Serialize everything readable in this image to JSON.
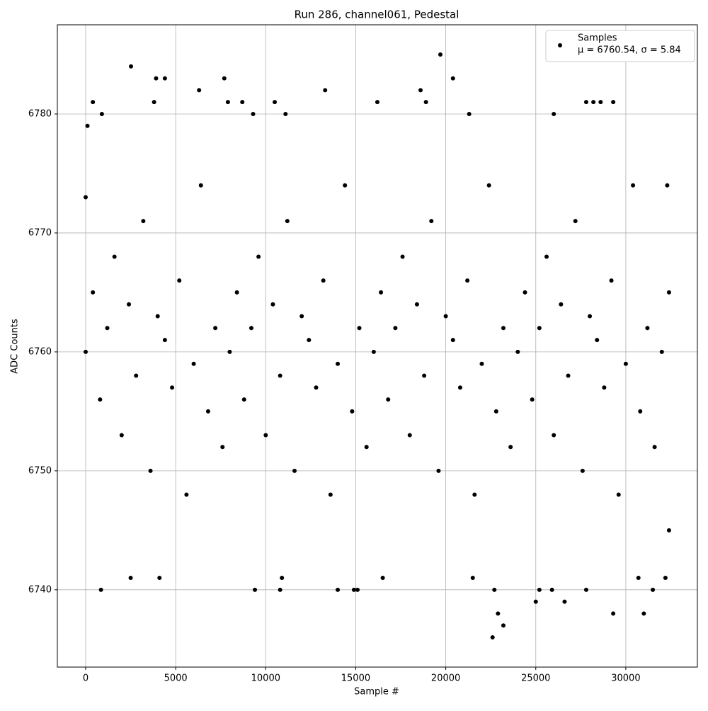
{
  "chart_data": {
    "type": "scatter",
    "title": "Run 286, channel061, Pedestal",
    "x_label": "Sample #",
    "y_label": "ADC Counts",
    "legend_note": "μ = 6760.54, σ = 5.84",
    "legend_position": "upper right",
    "grid": true,
    "xlim": [
      -1573,
      33975
    ],
    "ylim": [
      6733.5,
      6787.5
    ],
    "xticks": [
      0,
      5000,
      10000,
      15000,
      20000,
      25000,
      30000
    ],
    "yticks": [
      6740,
      6750,
      6760,
      6770,
      6780
    ],
    "series": [
      {
        "name": "Samples",
        "color": "#000000",
        "x": [
          0,
          400,
          800,
          1200,
          1600,
          2000,
          2400,
          2800,
          3200,
          3600,
          4000,
          4400,
          4800,
          5200,
          5600,
          6000,
          6400,
          6800,
          7200,
          7600,
          8000,
          8400,
          8800,
          9200,
          9600,
          10000,
          10400,
          10800,
          11200,
          11600,
          12000,
          12400,
          12800,
          13200,
          13600,
          14000,
          14400,
          14800,
          15200,
          15600,
          16000,
          16400,
          16800,
          17200,
          17600,
          18000,
          18400,
          18800,
          19200,
          19600,
          20000,
          20400,
          20800,
          21200,
          21600,
          22000,
          22400,
          22800,
          23200,
          23600,
          24000,
          24400,
          24800,
          25200,
          25600,
          26000,
          26400,
          26800,
          27200,
          27600,
          28000,
          28400,
          28800,
          29200,
          29600,
          30000,
          30400,
          30800,
          31200,
          31600,
          32000,
          32400,
          2517,
          19700,
          3910,
          4400,
          7700,
          20400,
          6300,
          13300,
          18600,
          400,
          3800,
          7900,
          8700,
          10500,
          16200,
          18900,
          27800,
          28200,
          28600,
          29300,
          850,
          9400,
          10800,
          14000,
          14900,
          15100,
          22700,
          25200,
          25900,
          27800,
          31500,
          25000,
          26600,
          22900,
          29300,
          31000,
          23200,
          22600,
          2500,
          4100,
          10900,
          16500,
          21500,
          30700,
          32200,
          26000,
          900,
          9300,
          11100,
          21300,
          32300,
          32400,
          0,
          100
        ],
        "values": [
          6760,
          6765,
          6756,
          6762,
          6768,
          6753,
          6764,
          6758,
          6771,
          6750,
          6763,
          6761,
          6757,
          6766,
          6748,
          6759,
          6774,
          6755,
          6762,
          6752,
          6760,
          6765,
          6756,
          6762,
          6768,
          6753,
          6764,
          6758,
          6771,
          6750,
          6763,
          6761,
          6757,
          6766,
          6748,
          6759,
          6774,
          6755,
          6762,
          6752,
          6760,
          6765,
          6756,
          6762,
          6768,
          6753,
          6764,
          6758,
          6771,
          6750,
          6763,
          6761,
          6757,
          6766,
          6748,
          6759,
          6774,
          6755,
          6762,
          6752,
          6760,
          6765,
          6756,
          6762,
          6768,
          6753,
          6764,
          6758,
          6771,
          6750,
          6763,
          6761,
          6757,
          6766,
          6748,
          6759,
          6774,
          6755,
          6762,
          6752,
          6760,
          6765,
          6784,
          6785,
          6783,
          6783,
          6783,
          6783,
          6782,
          6782,
          6782,
          6781,
          6781,
          6781,
          6781,
          6781,
          6781,
          6781,
          6781,
          6781,
          6781,
          6781,
          6740,
          6740,
          6740,
          6740,
          6740,
          6740,
          6740,
          6740,
          6740,
          6740,
          6740,
          6739,
          6739,
          6738,
          6738,
          6738,
          6737,
          6736,
          6741,
          6741,
          6741,
          6741,
          6741,
          6741,
          6741,
          6780,
          6780,
          6780,
          6780,
          6780,
          6774,
          6745,
          6773,
          6779
        ]
      }
    ]
  }
}
